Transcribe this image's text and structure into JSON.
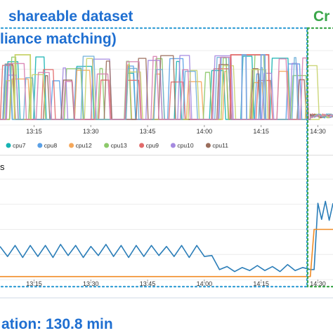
{
  "headings": {
    "top_title": "shareable dataset",
    "top_subtitle": "liance matching)",
    "right_title": "Cr",
    "panel_label": "s",
    "footer": "ation: 130.8 min"
  },
  "colors": {
    "title_blue": "#1f6fd1",
    "title_green": "#3aa64a",
    "box_blue": "#38a0d6",
    "box_green": "#3aa64a",
    "line_blue": "#2a7db8",
    "line_orange": "#f08a24"
  },
  "chart_data": [
    {
      "type": "line",
      "x_ticks": [
        "13:15",
        "13:30",
        "13:45",
        "14:00",
        "14:15",
        "14:30"
      ],
      "xlim": [
        "13:06",
        "14:34"
      ],
      "ylim": [
        0,
        100
      ],
      "grid": true,
      "legend_position": "bottom",
      "legend": [
        {
          "name": "cpu7",
          "color": "#17b3b3"
        },
        {
          "name": "cpu8",
          "color": "#5aa0e6"
        },
        {
          "name": "cpu12",
          "color": "#f5a75a"
        },
        {
          "name": "cpu13",
          "color": "#8cc96a"
        },
        {
          "name": "cpu9",
          "color": "#e26a6a"
        },
        {
          "name": "cpu10",
          "color": "#a58ae0"
        },
        {
          "name": "cpu11",
          "color": "#9a6d5c"
        }
      ],
      "series_busy_intervals": [
        {
          "color": "#c7d26a",
          "name": "",
          "intervals": [
            [
              "13:10",
              "13:14"
            ]
          ]
        },
        {
          "color": "#e26a6a",
          "name": "",
          "intervals": [
            [
              "14:07",
              "14:17"
            ]
          ]
        },
        {
          "color": "#7aa7e0",
          "name": "",
          "intervals": [
            [
              "14:10",
              "14:11"
            ],
            [
              "14:15",
              "14:16"
            ]
          ]
        }
      ],
      "note": "busy-phase pattern until ~14:28, near idle afterwards"
    },
    {
      "type": "line",
      "x_ticks": [
        "13:15",
        "13:30",
        "13:45",
        "14:00",
        "14:15",
        "14:30"
      ],
      "xlim": [
        "13:06",
        "14:34"
      ],
      "ylim": [
        0,
        100
      ],
      "grid": true,
      "series": [
        {
          "name": "",
          "color": "#2a7db8",
          "x": [
            "13:06",
            "13:08",
            "13:10",
            "13:12",
            "13:14",
            "13:16",
            "13:18",
            "13:20",
            "13:22",
            "13:24",
            "13:26",
            "13:28",
            "13:30",
            "13:32",
            "13:34",
            "13:36",
            "13:38",
            "13:40",
            "13:42",
            "13:44",
            "13:46",
            "13:48",
            "13:50",
            "13:52",
            "13:54",
            "13:56",
            "13:58",
            "14:00",
            "14:02",
            "14:04",
            "14:06",
            "14:08",
            "14:10",
            "14:12",
            "14:14",
            "14:16",
            "14:18",
            "14:20",
            "14:22",
            "14:24",
            "14:26",
            "14:28",
            "14:29",
            "14:30",
            "14:31",
            "14:32",
            "14:33",
            "14:34"
          ],
          "values": [
            33,
            23,
            34,
            22,
            34,
            23,
            34,
            22,
            35,
            24,
            34,
            22,
            33,
            24,
            35,
            23,
            34,
            22,
            34,
            23,
            34,
            24,
            33,
            23,
            34,
            22,
            34,
            23,
            24,
            10,
            13,
            8,
            12,
            9,
            14,
            9,
            13,
            8,
            15,
            9,
            12,
            10,
            10,
            76,
            60,
            78,
            59,
            76
          ]
        },
        {
          "name": "",
          "color": "#f08a24",
          "x": [
            "13:06",
            "14:28",
            "14:29",
            "14:34"
          ],
          "values": [
            3,
            3,
            50,
            50
          ]
        }
      ]
    }
  ]
}
